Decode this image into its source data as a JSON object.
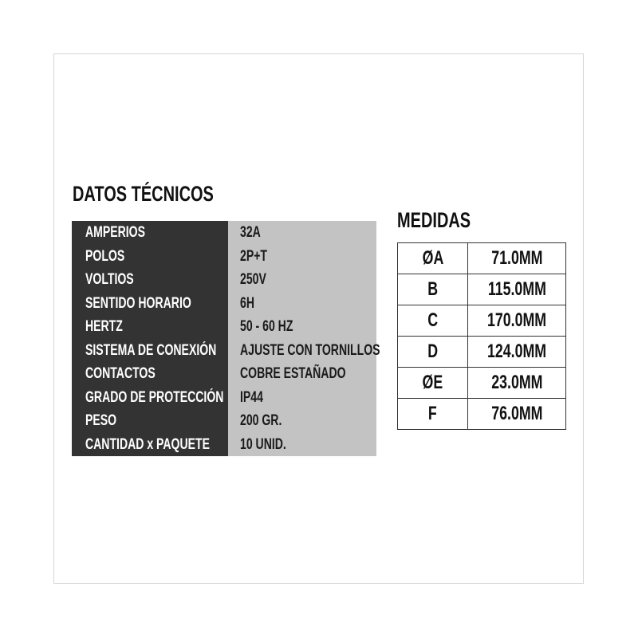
{
  "datos_tecnicos": {
    "title": "DATOS TÉCNICOS",
    "rows": [
      {
        "label": "AMPERIOS",
        "value": "32A"
      },
      {
        "label": "POLOS",
        "value": "2P+T"
      },
      {
        "label": "VOLTIOS",
        "value": "250V"
      },
      {
        "label": "SENTIDO HORARIO",
        "value": "6H"
      },
      {
        "label": "HERTZ",
        "value": "50 - 60 HZ"
      },
      {
        "label": "SISTEMA DE CONEXIÓN",
        "value": "AJUSTE CON TORNILLOS"
      },
      {
        "label": "CONTACTOS",
        "value": "COBRE ESTAÑADO"
      },
      {
        "label": "GRADO DE PROTECCIÓN",
        "value": "IP44"
      },
      {
        "label": "PESO",
        "value": "200 GR."
      },
      {
        "label": "CANTIDAD x PAQUETE",
        "value": "10 UNID."
      }
    ],
    "colors": {
      "label_bg": "#333333",
      "value_bg": "#c4c3c3"
    }
  },
  "medidas": {
    "title": "MEDIDAS",
    "rows": [
      {
        "label": "ØA",
        "value": "71.0MM"
      },
      {
        "label": "B",
        "value": "115.0MM"
      },
      {
        "label": "C",
        "value": "170.0MM"
      },
      {
        "label": "D",
        "value": "124.0MM"
      },
      {
        "label": "ØE",
        "value": "23.0MM"
      },
      {
        "label": "F",
        "value": "76.0MM"
      }
    ]
  }
}
